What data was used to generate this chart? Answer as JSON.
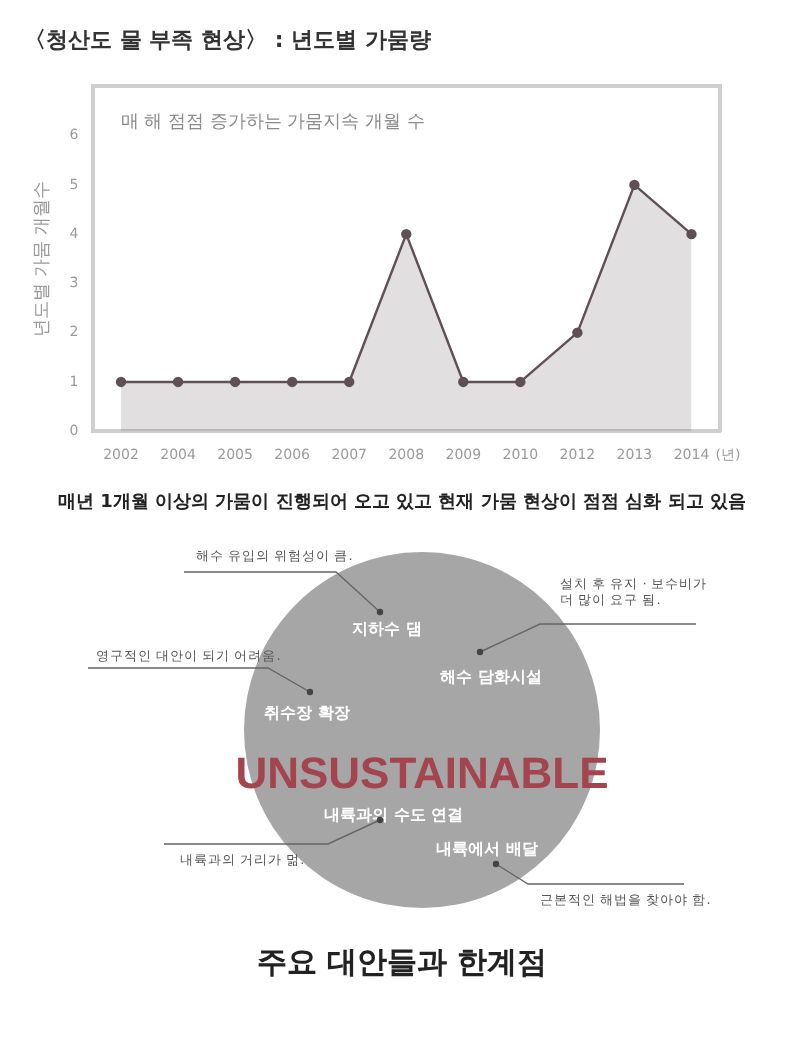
{
  "chart_data": [
    {
      "type": "area",
      "title": "〈청산도 물 부족 현상〉 : 년도별 가뭄량",
      "ylabel": "년도별 가뭄 개월수",
      "annotations": [
        "매 해 점점 증가하는 가뭄지속 개월 수",
        "(년)",
        "매년 1개월 이상의 가뭄이 진행되어 오고 있고 현재 가뭄 현상이 점점 심화 되고 있음"
      ],
      "categories": [
        "2002",
        "2004",
        "2005",
        "2006",
        "2007",
        "2008",
        "2009",
        "2010",
        "2012",
        "2013",
        "2014"
      ],
      "series": [
        {
          "color": "#5e5055",
          "values": [
            1,
            1,
            1,
            1,
            1,
            4,
            1,
            1,
            2,
            5,
            4
          ]
        }
      ],
      "ylim": [
        0,
        7
      ],
      "yticks": [
        0,
        1,
        2,
        3,
        4,
        5,
        6
      ],
      "grid": false,
      "legend": false,
      "marker": "circle",
      "line_style": "solid"
    },
    {
      "type": "other",
      "title": "주요 대안들과 한계점",
      "annotations": [
        "해수 유입의 위험성이 큼.",
        "지하수 댐",
        "설치 후 유지 · 보수비가\n더 많이 요구 됨.",
        "해수 담화시설",
        "영구적인 대안이 되기 어려움.",
        "취수장 확장",
        "UNSUSTAINABLE",
        "내륙과의 수도 연결",
        "내륙과의 거리가 멂.",
        "내륙에서 배달",
        "근본적인 해법을 찾아야 함."
      ]
    }
  ]
}
